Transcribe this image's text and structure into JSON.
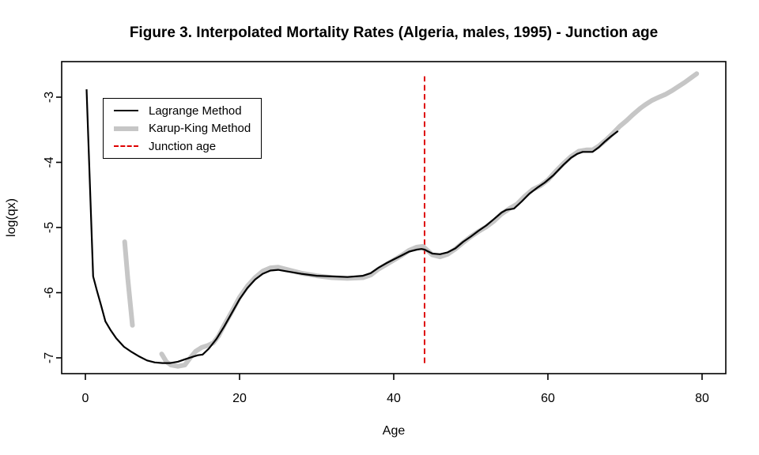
{
  "figure": {
    "title": "Figure 3. Interpolated Mortality Rates (Algeria, males, 1995) - Junction age"
  },
  "legend": {
    "items": [
      {
        "label": "Lagrange Method"
      },
      {
        "label": "Karup-King Method"
      },
      {
        "label": "Junction age"
      }
    ]
  },
  "chart_data": {
    "type": "line",
    "title": "Figure 3. Interpolated Mortality Rates (Algeria, males, 1995) - Junction age",
    "xlabel": "Age",
    "ylabel": "log(qx)",
    "xlim": [
      -3.1,
      83.1
    ],
    "ylim": [
      -7.24,
      -2.45
    ],
    "x_ticks": [
      0,
      20,
      40,
      60,
      80
    ],
    "y_ticks": [
      -3,
      -4,
      -5,
      -6,
      -7
    ],
    "grid": false,
    "legend_position": "top-left",
    "junction_age": 44,
    "series": [
      {
        "name": "Lagrange Method",
        "color": "#000000",
        "line_width": 2.2,
        "line_style": "solid",
        "segments": [
          [
            [
              0.15,
              -2.88
            ],
            [
              1,
              -5.75
            ],
            [
              1.5,
              -5.97
            ],
            [
              2,
              -6.18
            ],
            [
              2.6,
              -6.44
            ],
            [
              3.3,
              -6.58
            ],
            [
              4,
              -6.7
            ],
            [
              5,
              -6.83
            ],
            [
              6,
              -6.91
            ],
            [
              7,
              -6.98
            ],
            [
              8,
              -7.04
            ],
            [
              9,
              -7.07
            ],
            [
              10,
              -7.08
            ],
            [
              11,
              -7.08
            ],
            [
              12,
              -7.06
            ],
            [
              13,
              -7.02
            ],
            [
              14,
              -6.98
            ],
            [
              14.6,
              -6.96
            ],
            [
              15.2,
              -6.95
            ],
            [
              16,
              -6.86
            ],
            [
              17,
              -6.71
            ],
            [
              18,
              -6.52
            ],
            [
              19,
              -6.31
            ],
            [
              20,
              -6.1
            ],
            [
              21,
              -5.93
            ],
            [
              22,
              -5.8
            ],
            [
              23,
              -5.71
            ],
            [
              24,
              -5.66
            ],
            [
              25,
              -5.65
            ],
            [
              26,
              -5.67
            ],
            [
              28,
              -5.71
            ],
            [
              30,
              -5.74
            ],
            [
              32,
              -5.75
            ],
            [
              34,
              -5.76
            ],
            [
              36,
              -5.74
            ],
            [
              37,
              -5.7
            ],
            [
              38,
              -5.62
            ],
            [
              39,
              -5.55
            ],
            [
              40,
              -5.49
            ],
            [
              41,
              -5.43
            ],
            [
              42,
              -5.37
            ],
            [
              43,
              -5.34
            ],
            [
              43.6,
              -5.33
            ],
            [
              44,
              -5.34
            ],
            [
              45,
              -5.4
            ],
            [
              46,
              -5.41
            ],
            [
              47,
              -5.38
            ],
            [
              48,
              -5.32
            ],
            [
              49,
              -5.22
            ],
            [
              50,
              -5.14
            ],
            [
              51,
              -5.05
            ],
            [
              52,
              -4.97
            ],
            [
              53,
              -4.87
            ],
            [
              54,
              -4.77
            ],
            [
              54.6,
              -4.73
            ],
            [
              55.6,
              -4.71
            ],
            [
              56.6,
              -4.6
            ],
            [
              57.6,
              -4.48
            ],
            [
              58.6,
              -4.39
            ],
            [
              59.6,
              -4.31
            ],
            [
              60.7,
              -4.2
            ],
            [
              62,
              -4.04
            ],
            [
              63,
              -3.93
            ],
            [
              63.8,
              -3.87
            ],
            [
              64.5,
              -3.84
            ],
            [
              65.8,
              -3.84
            ],
            [
              66.6,
              -3.77
            ],
            [
              67.4,
              -3.68
            ],
            [
              68.2,
              -3.6
            ],
            [
              69.1,
              -3.52
            ]
          ]
        ]
      },
      {
        "name": "Karup-King Method",
        "color": "#c6c6c6",
        "line_width": 6,
        "line_style": "solid",
        "segments": [
          [
            [
              5.1,
              -5.22
            ],
            [
              5.5,
              -5.78
            ],
            [
              6.1,
              -6.5
            ]
          ],
          [
            [
              9.9,
              -6.94
            ],
            [
              10.5,
              -7.06
            ],
            [
              11.1,
              -7.11
            ],
            [
              12,
              -7.13
            ],
            [
              12.9,
              -7.11
            ],
            [
              13.6,
              -7.0
            ],
            [
              14.3,
              -6.9
            ],
            [
              15.1,
              -6.84
            ],
            [
              15.9,
              -6.81
            ],
            [
              16.6,
              -6.77
            ],
            [
              17.3,
              -6.66
            ],
            [
              18,
              -6.5
            ],
            [
              19,
              -6.29
            ],
            [
              20,
              -6.07
            ],
            [
              21,
              -5.9
            ],
            [
              22,
              -5.77
            ],
            [
              23,
              -5.67
            ],
            [
              24,
              -5.62
            ],
            [
              25,
              -5.61
            ],
            [
              26,
              -5.64
            ],
            [
              28,
              -5.7
            ],
            [
              30,
              -5.74
            ],
            [
              32,
              -5.77
            ],
            [
              34,
              -5.78
            ],
            [
              36,
              -5.77
            ],
            [
              37,
              -5.73
            ],
            [
              38,
              -5.64
            ],
            [
              39,
              -5.57
            ],
            [
              40,
              -5.5
            ],
            [
              41,
              -5.43
            ],
            [
              42,
              -5.35
            ],
            [
              43,
              -5.3
            ],
            [
              43.8,
              -5.29
            ],
            [
              45,
              -5.42
            ],
            [
              46,
              -5.45
            ],
            [
              47,
              -5.41
            ],
            [
              48,
              -5.33
            ],
            [
              49,
              -5.23
            ],
            [
              50,
              -5.14
            ],
            [
              51,
              -5.06
            ],
            [
              52,
              -4.99
            ],
            [
              53,
              -4.9
            ],
            [
              54,
              -4.79
            ],
            [
              55,
              -4.71
            ],
            [
              56,
              -4.64
            ],
            [
              57,
              -4.52
            ],
            [
              58,
              -4.42
            ],
            [
              59,
              -4.36
            ],
            [
              60,
              -4.27
            ],
            [
              61,
              -4.14
            ],
            [
              62,
              -4.02
            ],
            [
              63,
              -3.91
            ],
            [
              64,
              -3.83
            ],
            [
              65,
              -3.81
            ],
            [
              65.8,
              -3.81
            ],
            [
              66.6,
              -3.75
            ],
            [
              67.5,
              -3.66
            ],
            [
              68.4,
              -3.56
            ],
            [
              69.3,
              -3.45
            ],
            [
              70.2,
              -3.36
            ],
            [
              71,
              -3.27
            ],
            [
              72,
              -3.17
            ],
            [
              72.7,
              -3.11
            ],
            [
              73.5,
              -3.05
            ],
            [
              74.4,
              -3.0
            ],
            [
              75.2,
              -2.96
            ],
            [
              76.1,
              -2.9
            ],
            [
              77,
              -2.83
            ],
            [
              77.8,
              -2.77
            ],
            [
              78.6,
              -2.7
            ],
            [
              79.3,
              -2.64
            ]
          ]
        ]
      },
      {
        "name": "Junction age",
        "color": "#de0000",
        "line_width": 2,
        "line_style": "dashed",
        "vline": {
          "x": 44,
          "y_from": -7.08,
          "y_to": -2.68
        }
      }
    ]
  }
}
